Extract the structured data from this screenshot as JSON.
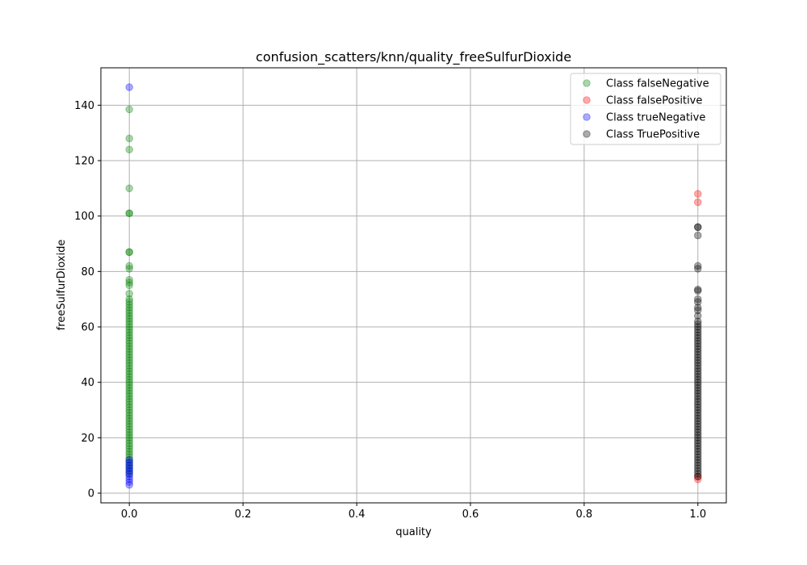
{
  "chart_data": {
    "type": "scatter",
    "title": "confusion_scatters/knn/quality_freeSulfurDioxide",
    "xlabel": "quality",
    "ylabel": "freeSulfurDioxide",
    "xlim": [
      -0.05,
      1.05
    ],
    "ylim": [
      -3.5,
      153.5
    ],
    "xticks": [
      0.0,
      0.2,
      0.4,
      0.6,
      0.8,
      1.0
    ],
    "xtick_labels": [
      "0.0",
      "0.2",
      "0.4",
      "0.6",
      "0.8",
      "1.0"
    ],
    "yticks": [
      0,
      20,
      40,
      60,
      80,
      100,
      120,
      140
    ],
    "ytick_labels": [
      "0",
      "20",
      "40",
      "60",
      "80",
      "100",
      "120",
      "140"
    ],
    "grid": true,
    "legend_position": "top-right",
    "series": [
      {
        "name": "Class falseNegative",
        "color": "#008000",
        "x": 0,
        "values": [
          138.5,
          128,
          124,
          110,
          101,
          101,
          87,
          87,
          82,
          81,
          77,
          76,
          75,
          72,
          70,
          69,
          68,
          67,
          66,
          65,
          64,
          63,
          62,
          61,
          60,
          59,
          58,
          57,
          56,
          55,
          54,
          53,
          52,
          51,
          50,
          49,
          48,
          47,
          46,
          45,
          44,
          43,
          42,
          41,
          40,
          39,
          38,
          37,
          36,
          35,
          34,
          33,
          32,
          31,
          30,
          29,
          28,
          27,
          26,
          25,
          24,
          23,
          22,
          21,
          20,
          19,
          18,
          17,
          16,
          15,
          14,
          13,
          12,
          11,
          10,
          9,
          8,
          7
        ]
      },
      {
        "name": "Class falsePositive",
        "color": "#ff0000",
        "x": 1,
        "values": [
          108,
          105,
          6,
          5
        ]
      },
      {
        "name": "Class trueNegative",
        "color": "#0000ff",
        "x": 0,
        "values": [
          146.5,
          12,
          11,
          10,
          9,
          8,
          7,
          6,
          5,
          4,
          3
        ]
      },
      {
        "name": "Class TruePositive",
        "color": "#000000",
        "x": 1,
        "values": [
          96,
          96,
          93,
          82,
          81,
          73.5,
          73,
          70,
          69,
          67,
          66,
          64,
          62,
          61,
          60,
          59,
          58,
          57,
          56,
          55,
          54,
          53,
          52,
          51,
          50,
          49,
          48,
          47,
          46,
          45,
          44,
          43,
          42,
          41,
          40,
          39,
          38,
          37,
          36,
          35,
          34,
          33,
          32,
          31,
          30,
          29,
          28,
          27,
          26,
          25,
          24,
          23,
          22,
          21,
          20,
          19,
          18,
          17,
          16,
          15,
          14,
          13,
          12,
          11,
          10,
          9,
          8,
          7,
          6
        ]
      }
    ]
  }
}
